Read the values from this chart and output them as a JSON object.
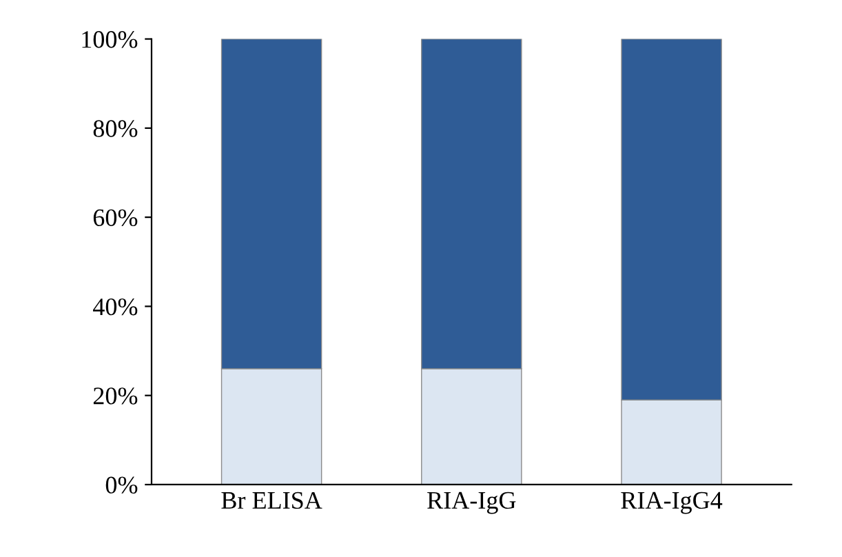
{
  "chart_data": {
    "type": "bar",
    "stacked": true,
    "categories": [
      "Br ELISA",
      "RIA-IgG",
      "RIA-IgG4"
    ],
    "series": [
      {
        "color": "#dce6f2",
        "values": [
          26,
          26,
          19
        ]
      },
      {
        "color": "#2f5c96",
        "values": [
          74,
          74,
          81
        ]
      }
    ],
    "ylim": [
      0,
      100
    ],
    "yticks": [
      {
        "value": 0,
        "label": "0%"
      },
      {
        "value": 20,
        "label": "20%"
      },
      {
        "value": 40,
        "label": "40%"
      },
      {
        "value": 60,
        "label": "60%"
      },
      {
        "value": 80,
        "label": "80%"
      },
      {
        "value": 100,
        "label": "100%"
      }
    ],
    "grid": false,
    "legend": false
  }
}
